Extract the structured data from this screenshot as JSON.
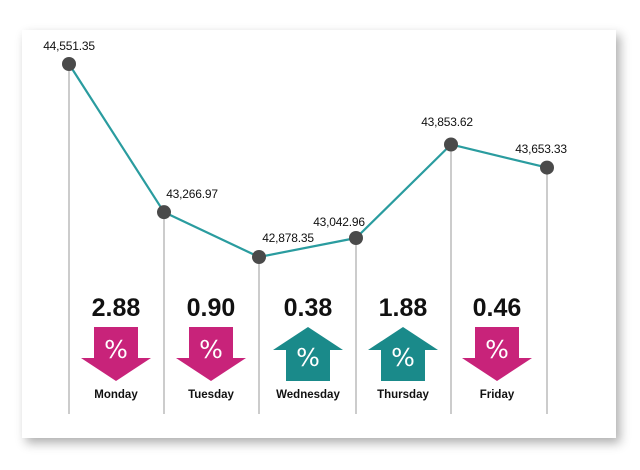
{
  "chart_data": {
    "type": "line",
    "categories": [
      "Monday",
      "Tuesday",
      "Wednesday",
      "Thursday",
      "Friday"
    ],
    "series": [
      {
        "values": [
          44551.35,
          43266.97,
          42878.35,
          43042.96,
          43853.62
        ]
      }
    ],
    "extra_points": [
      {
        "value": 43653.33,
        "label": "43,653.33"
      }
    ],
    "value_labels": [
      "44,551.35",
      "43,266.97",
      "42,878.35",
      "43,042.96",
      "43,853.62"
    ],
    "daily_change": [
      {
        "day": "Monday",
        "percent": "2.88",
        "direction": "down"
      },
      {
        "day": "Tuesday",
        "percent": "0.90",
        "direction": "down"
      },
      {
        "day": "Wednesday",
        "percent": "0.38",
        "direction": "up"
      },
      {
        "day": "Thursday",
        "percent": "1.88",
        "direction": "up"
      },
      {
        "day": "Friday",
        "percent": "0.46",
        "direction": "down"
      }
    ],
    "arrow_symbol": "%",
    "colors": {
      "line": "#2a9c9f",
      "point": "#4a4a4a",
      "down": "#c8237a",
      "up": "#1a8a8a",
      "guide": "#9a9a9a"
    },
    "ylim": [
      42600,
      44800
    ],
    "grid": false
  }
}
